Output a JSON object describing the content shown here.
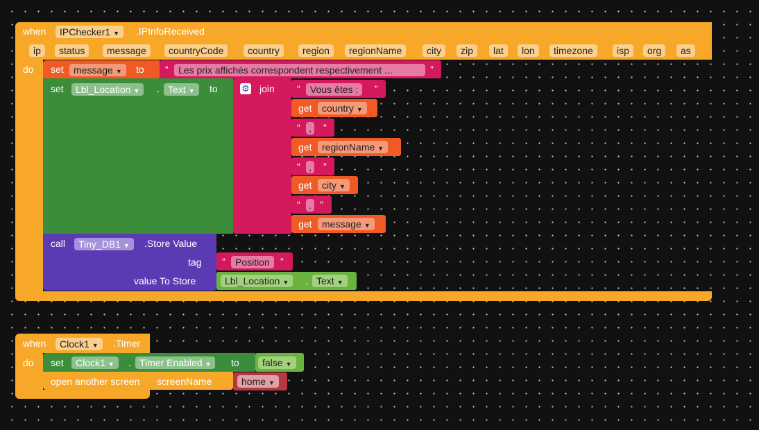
{
  "event1": {
    "when": "when",
    "component": "IPChecker1",
    "event": ".IPInfoReceived",
    "params": [
      "ip",
      "status",
      "message",
      "countryCode",
      "country",
      "region",
      "regionName",
      "city",
      "zip",
      "lat",
      "lon",
      "timezone",
      "isp",
      "org",
      "as"
    ],
    "do": "do",
    "set_message": {
      "set": "set",
      "var": "message",
      "to": "to",
      "text": "Les prix affichés correspondent respectivement ..."
    },
    "set_label": {
      "set": "set",
      "component": "Lbl_Location",
      "dot": ".",
      "property": "Text",
      "to": "to",
      "join": "join",
      "items": [
        {
          "type": "text",
          "value": "Vous êtes : "
        },
        {
          "type": "get",
          "get": "get",
          "var": "country"
        },
        {
          "type": "text",
          "value": ", "
        },
        {
          "type": "get",
          "get": "get",
          "var": "regionName"
        },
        {
          "type": "text",
          "value": ", "
        },
        {
          "type": "get",
          "get": "get",
          "var": "city"
        },
        {
          "type": "text",
          "value": ". "
        },
        {
          "type": "get",
          "get": "get",
          "var": "message"
        }
      ]
    },
    "store": {
      "call": "call",
      "component": "Tiny_DB1",
      "method": ".Store Value",
      "tag_label": "tag",
      "tag_value": "Position",
      "value_label": "value To Store",
      "value_component": "Lbl_Location",
      "value_dot": ".",
      "value_property": "Text"
    }
  },
  "event2": {
    "when": "when",
    "component": "Clock1",
    "event": ".Timer",
    "do": "do",
    "set_timer": {
      "set": "set",
      "component": "Clock1",
      "dot": ".",
      "property": "Timer Enabled",
      "to": "to",
      "value": "false"
    },
    "open_screen": {
      "label": "open another screen",
      "param": "screenName",
      "value": "home"
    }
  },
  "colors": {
    "event": "#f8a828",
    "variable": "#f05a25",
    "component_set": "#3b8d3c",
    "text": "#d4195d",
    "method": "#5c3ab3",
    "component_get": "#6bb33f",
    "screen_value": "#b53940"
  },
  "icons": {
    "join_mutator": "gear-icon",
    "dropdown": "dropdown-arrow-icon"
  }
}
